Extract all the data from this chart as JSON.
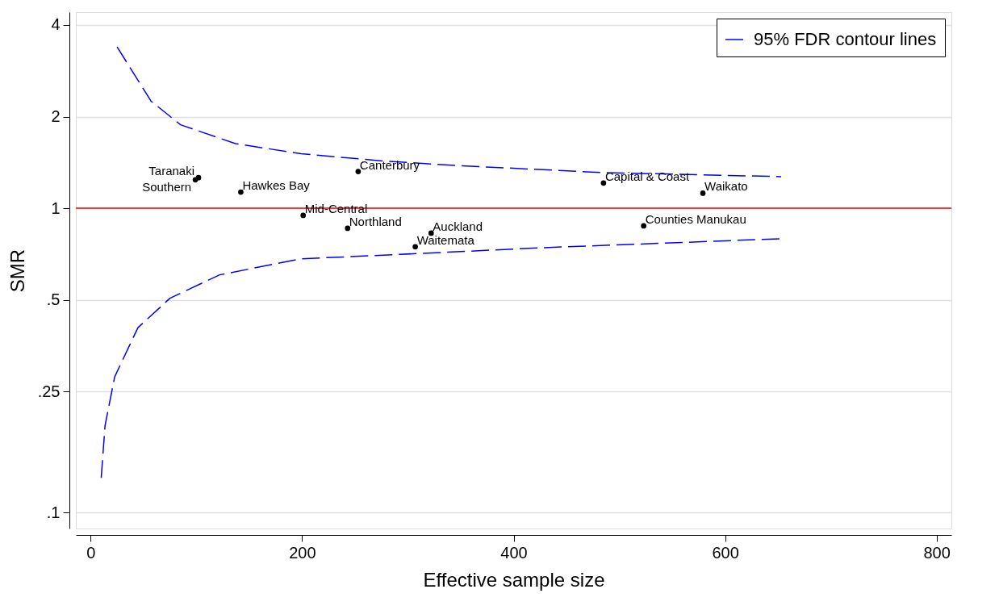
{
  "chart_data": {
    "type": "scatter",
    "xlabel": "Effective sample size",
    "ylabel": "SMR",
    "xlim": [
      -14,
      814
    ],
    "xticks": [
      0,
      200,
      400,
      600,
      800
    ],
    "ylim": [
      0.0886,
      4.41
    ],
    "log": "y",
    "yticks": [
      {
        "value": 0.1,
        "label": ".1"
      },
      {
        "value": 0.25,
        "label": ".25"
      },
      {
        "value": 0.5,
        "label": ".5"
      },
      1,
      2,
      4
    ],
    "grid": "y",
    "legend": "top right",
    "marker": "circle",
    "series": [
      {
        "color": "#000000",
        "x": [
          102,
          99,
          142,
          253,
          201,
          243,
          322,
          307,
          485,
          579,
          523
        ],
        "values": [
          1.26,
          1.24,
          1.13,
          1.32,
          0.947,
          0.859,
          0.828,
          0.747,
          1.21,
          1.12,
          0.875
        ]
      },
      {
        "type": "line",
        "name": "95% FDR contour lines",
        "color": "#0000ff",
        "line_style": "dashed",
        "marker": "none",
        "x": [
          25,
          57,
          85,
          137,
          199,
          276,
          348,
          483,
          653
        ],
        "values": [
          3.39,
          2.25,
          1.88,
          1.63,
          1.51,
          1.43,
          1.38,
          1.31,
          1.27
        ]
      },
      {
        "type": "line",
        "color": "#0000ff",
        "line_style": "dashed",
        "marker": "none",
        "x": [
          10,
          13.6,
          22.7,
          44.7,
          75,
          122,
          199,
          285,
          429,
          653
        ],
        "values": [
          0.13,
          0.193,
          0.279,
          0.405,
          0.506,
          0.604,
          0.682,
          0.703,
          0.742,
          0.794
        ]
      }
    ],
    "ref_lines": [
      {
        "axis": "y",
        "value": 1,
        "color": "#ff0000"
      }
    ],
    "annotations": [
      {
        "text": "Taranaki",
        "x": 102,
        "y": 1.26
      },
      {
        "text": "Southern",
        "x": 99,
        "y": 1.24
      },
      {
        "text": "Hawkes Bay",
        "x": 142,
        "y": 1.13
      },
      {
        "text": "Canterbury",
        "x": 253,
        "y": 1.32
      },
      {
        "text": "Mid-Central",
        "x": 201,
        "y": 0.947
      },
      {
        "text": "Northland",
        "x": 243,
        "y": 0.859
      },
      {
        "text": "Auckland",
        "x": 322,
        "y": 0.828
      },
      {
        "text": "Waitemata",
        "x": 307,
        "y": 0.747
      },
      {
        "text": "Capital & Coast",
        "x": 485,
        "y": 1.21
      },
      {
        "text": "Waikato",
        "x": 579,
        "y": 1.12
      },
      {
        "text": "Counties Manukau",
        "x": 523,
        "y": 0.875
      }
    ]
  }
}
